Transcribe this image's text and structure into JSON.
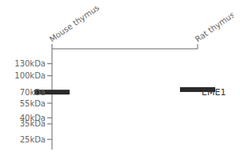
{
  "chart_data": {
    "type": "scatter",
    "categories": [
      "Mouse thymus",
      "Rat thymus"
    ],
    "values": [
      70,
      74
    ],
    "color": "#2a2a2a",
    "marker": "band",
    "log": "y",
    "ylim": [
      20,
      180
    ],
    "yticks": [
      {
        "value": 130,
        "label": "130kDa"
      },
      {
        "value": 100,
        "label": "100kDa"
      },
      {
        "value": 70,
        "label": "70kDa"
      },
      {
        "value": 55,
        "label": "55kDa"
      },
      {
        "value": 40,
        "label": "40kDa"
      },
      {
        "value": 35,
        "label": "35kDa"
      },
      {
        "value": 25,
        "label": "25kDa"
      }
    ],
    "annotations": [
      {
        "text": "EME1",
        "y": 70
      }
    ]
  }
}
